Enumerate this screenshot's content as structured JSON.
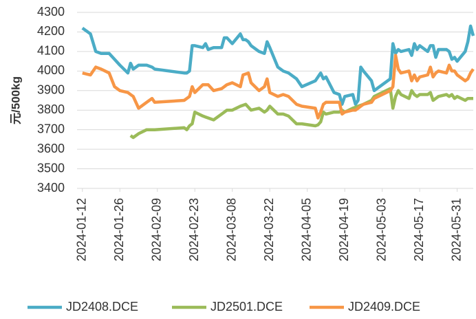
{
  "chart_data": {
    "type": "line",
    "y_label": "元/500kg",
    "x": [
      "2024-01-12",
      "2024-01-15",
      "2024-01-17",
      "2024-01-19",
      "2024-01-22",
      "2024-01-24",
      "2024-01-26",
      "2024-01-29",
      "2024-01-30",
      "2024-01-31",
      "2024-02-02",
      "2024-02-05",
      "2024-02-07",
      "2024-02-08",
      "2024-02-19",
      "2024-02-20",
      "2024-02-21",
      "2024-02-22",
      "2024-02-23",
      "2024-02-26",
      "2024-02-27",
      "2024-02-28",
      "2024-03-01",
      "2024-03-04",
      "2024-03-05",
      "2024-03-06",
      "2024-03-08",
      "2024-03-11",
      "2024-03-12",
      "2024-03-13",
      "2024-03-14",
      "2024-03-15",
      "2024-03-18",
      "2024-03-20",
      "2024-03-21",
      "2024-03-22",
      "2024-03-25",
      "2024-03-27",
      "2024-03-29",
      "2024-04-01",
      "2024-04-03",
      "2024-04-08",
      "2024-04-09",
      "2024-04-10",
      "2024-04-11",
      "2024-04-12",
      "2024-04-15",
      "2024-04-17",
      "2024-04-18",
      "2024-04-19",
      "2024-04-22",
      "2024-04-23",
      "2024-04-24",
      "2024-04-25",
      "2024-04-26",
      "2024-04-29",
      "2024-04-30",
      "2024-05-06",
      "2024-05-07",
      "2024-05-08",
      "2024-05-09",
      "2024-05-10",
      "2024-05-13",
      "2024-05-14",
      "2024-05-15",
      "2024-05-16",
      "2024-05-17",
      "2024-05-20",
      "2024-05-21",
      "2024-05-22",
      "2024-05-23",
      "2024-05-24",
      "2024-05-27",
      "2024-05-28",
      "2024-05-29",
      "2024-05-30",
      "2024-05-31",
      "2024-06-03",
      "2024-06-04",
      "2024-06-05",
      "2024-06-06"
    ],
    "series": [
      {
        "name": "JD2408.DCE",
        "color": "#4bacc6",
        "values": [
          4220,
          4190,
          4100,
          4090,
          4090,
          4060,
          4030,
          3990,
          4040,
          4010,
          4030,
          4030,
          4020,
          4010,
          3990,
          3990,
          4000,
          4130,
          4130,
          4120,
          4140,
          4110,
          4120,
          4120,
          4170,
          4170,
          4140,
          4190,
          4160,
          4160,
          4150,
          4130,
          4100,
          4090,
          4150,
          4120,
          4020,
          4000,
          3990,
          3960,
          3920,
          3950,
          3970,
          3990,
          3960,
          3970,
          3890,
          3880,
          3830,
          3870,
          3880,
          3830,
          3850,
          4020,
          4000,
          3950,
          3900,
          3960,
          4140,
          4090,
          4110,
          4100,
          4110,
          4080,
          4140,
          4110,
          4130,
          4100,
          4130,
          4130,
          4070,
          4110,
          4110,
          4100,
          4060,
          4070,
          4050,
          4100,
          4150,
          4230,
          4180
        ]
      },
      {
        "name": "JD2501.DCE",
        "color": "#9bbb59",
        "values": [
          null,
          null,
          null,
          null,
          null,
          null,
          null,
          null,
          3670,
          3660,
          3680,
          3700,
          3700,
          3700,
          3710,
          3700,
          3720,
          3730,
          3790,
          3770,
          3765,
          3760,
          3750,
          3780,
          3790,
          3800,
          3800,
          3820,
          3825,
          3830,
          3815,
          3800,
          3810,
          3790,
          3800,
          3820,
          3780,
          3780,
          3770,
          3730,
          3730,
          3720,
          3725,
          3740,
          3790,
          3780,
          3790,
          3790,
          3800,
          3790,
          3810,
          3815,
          3820,
          3825,
          3830,
          3850,
          3870,
          3910,
          3810,
          3870,
          3900,
          3880,
          3860,
          3900,
          3880,
          3870,
          3880,
          3880,
          3890,
          3850,
          3860,
          3870,
          3880,
          3870,
          3880,
          3860,
          3870,
          3850,
          3860,
          3860,
          3860
        ]
      },
      {
        "name": "JD2409.DCE",
        "color": "#f79646",
        "values": [
          3990,
          3980,
          4020,
          4010,
          3990,
          3920,
          3900,
          3890,
          3880,
          3870,
          3810,
          3840,
          3860,
          3840,
          3850,
          3860,
          3870,
          3920,
          3890,
          3930,
          3930,
          3930,
          3900,
          3910,
          3920,
          3930,
          3940,
          3920,
          3980,
          3985,
          3990,
          3940,
          3900,
          3920,
          3960,
          3890,
          3870,
          3880,
          3870,
          3830,
          3820,
          3810,
          3760,
          3790,
          3830,
          3840,
          3840,
          3840,
          3780,
          3790,
          3800,
          3800,
          3810,
          3820,
          3830,
          3840,
          3860,
          3900,
          3920,
          4080,
          4010,
          3990,
          4000,
          3950,
          3980,
          3950,
          3970,
          3980,
          4020,
          3970,
          3990,
          4000,
          3990,
          4030,
          4000,
          4000,
          3980,
          3950,
          3960,
          3990,
          4010
        ]
      }
    ],
    "xlim": [
      "2024-01-10",
      "2024-06-06"
    ],
    "xticks": [
      "2024-01-12",
      "2024-01-26",
      "2024-02-09",
      "2024-02-23",
      "2024-03-08",
      "2024-03-22",
      "2024-04-05",
      "2024-04-19",
      "2024-05-03",
      "2024-05-17",
      "2024-05-31"
    ],
    "ylim": [
      3400,
      4300
    ],
    "yticks": [
      3400,
      3500,
      3600,
      3700,
      3800,
      3900,
      4000,
      4100,
      4200,
      4300
    ],
    "grid": true
  }
}
